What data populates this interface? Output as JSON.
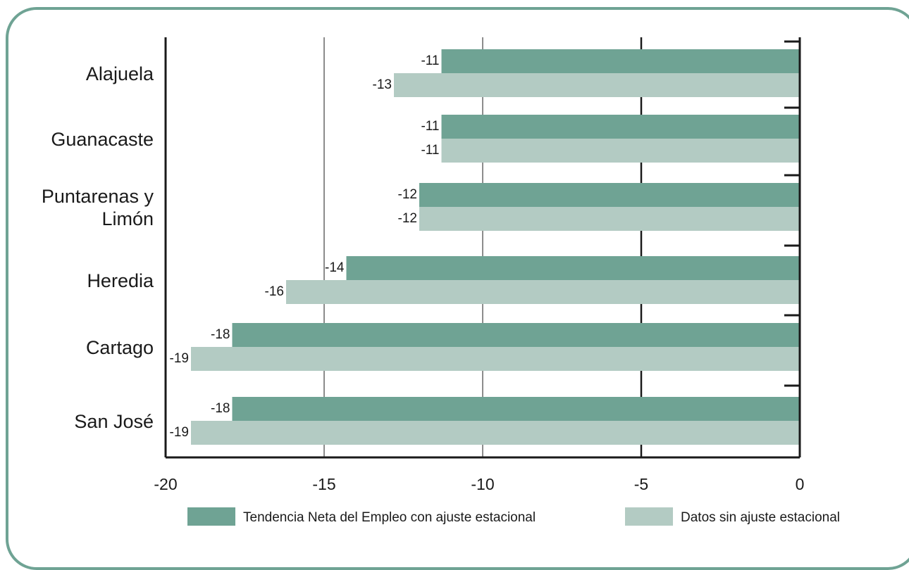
{
  "chart_data": {
    "type": "bar",
    "orientation": "horizontal",
    "title": "",
    "xlabel": "",
    "ylabel": "",
    "categories": [
      "Alajuela",
      "Guanacaste",
      "Puntarenas y Limón",
      "Heredia",
      "Cartago",
      "San José"
    ],
    "category_lines": [
      [
        "Alajuela"
      ],
      [
        "Guanacaste"
      ],
      [
        "Puntarenas y",
        "Limón"
      ],
      [
        "Heredia"
      ],
      [
        "Cartago"
      ],
      [
        "San José"
      ]
    ],
    "series": [
      {
        "name": "Tendencia Neta del Empleo con ajuste estacional",
        "values": [
          -11.3,
          -11.3,
          -12,
          -14.3,
          -17.9,
          -17.9
        ],
        "labels": [
          "-11",
          "-11",
          "-12",
          "-14",
          "-18",
          "-18"
        ],
        "color": "#6fa394"
      },
      {
        "name": "Datos sin ajuste estacional",
        "values": [
          -12.8,
          -11.3,
          -12,
          -16.2,
          -19.2,
          -19.2
        ],
        "labels": [
          "-13",
          "-11",
          "-12",
          "-16",
          "-19",
          "-19"
        ],
        "color": "#b3cbc3"
      }
    ],
    "xlim": [
      -20,
      0
    ],
    "xticks": [
      -20,
      -15,
      -10,
      -5,
      0
    ],
    "xtick_labels": [
      "-20",
      "-15",
      "-10",
      "-5",
      "0"
    ],
    "grid": true,
    "legend_position": "bottom",
    "frame_color": "#6fa394"
  }
}
